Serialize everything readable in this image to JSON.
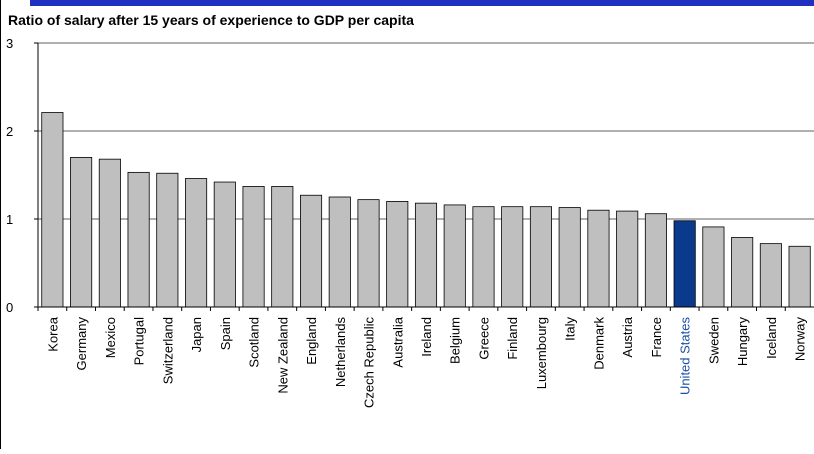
{
  "chart_data": {
    "type": "bar",
    "title": "Ratio of salary after 15 years of experience to GDP per capita",
    "xlabel": "",
    "ylabel": "",
    "ylim": [
      0,
      3
    ],
    "yticks": [
      "0",
      "1",
      "2",
      "3"
    ],
    "grid": true,
    "categories": [
      "Korea",
      "Germany",
      "Mexico",
      "Portugal",
      "Switzerland",
      "Japan",
      "Spain",
      "Scotland",
      "New Zealand",
      "England",
      "Netherlands",
      "Czech Republic",
      "Australia",
      "Ireland",
      "Belgium",
      "Greece",
      "Finland",
      "Luxembourg",
      "Italy",
      "Denmark",
      "Austria",
      "France",
      "United States",
      "Sweden",
      "Hungary",
      "Iceland",
      "Norway"
    ],
    "values": [
      2.21,
      1.7,
      1.68,
      1.53,
      1.52,
      1.46,
      1.42,
      1.37,
      1.37,
      1.27,
      1.25,
      1.22,
      1.2,
      1.18,
      1.16,
      1.14,
      1.14,
      1.14,
      1.13,
      1.1,
      1.09,
      1.06,
      0.98,
      0.91,
      0.79,
      0.72,
      0.69
    ],
    "highlight": "United States",
    "colors": {
      "bar": "#bfbfbf",
      "bar_outline": "#000000",
      "highlight_bar": "#0a3a8c",
      "highlight_label": "#1b4fa3",
      "grid": "#808080",
      "header_strip": "#1f2fbf"
    }
  }
}
